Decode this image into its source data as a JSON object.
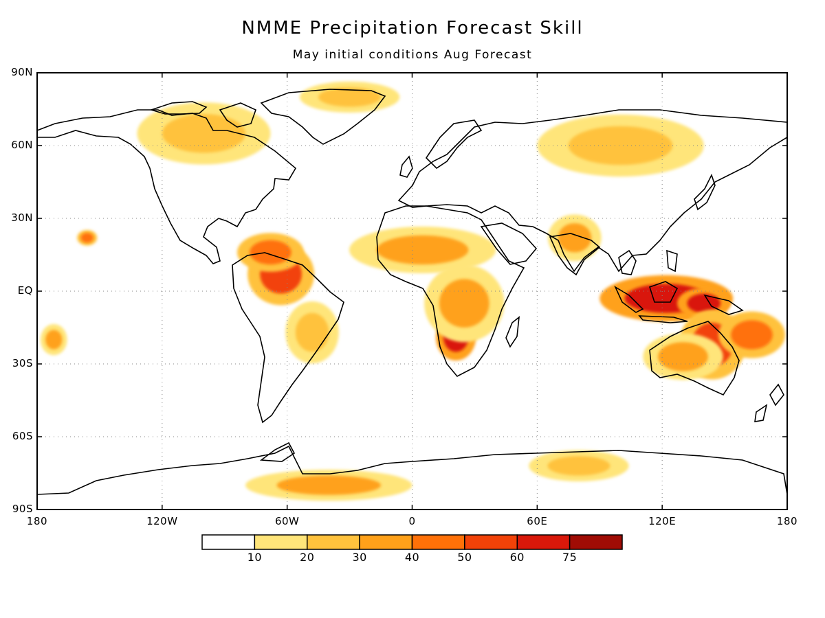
{
  "chart": {
    "title": "NMME Precipitation Forecast Skill",
    "subtitle": "May initial conditions  Aug Forecast"
  },
  "chart_data": {
    "type": "heatmap",
    "title": "NMME Precipitation Forecast Skill",
    "subtitle": "May initial conditions  Aug Forecast",
    "xlabel": "",
    "ylabel": "",
    "xlim": [
      -180,
      180
    ],
    "ylim": [
      -90,
      90
    ],
    "grid": true,
    "x_ticks": [
      {
        "value": -180,
        "label": "180"
      },
      {
        "value": -120,
        "label": "120W"
      },
      {
        "value": -60,
        "label": "60W"
      },
      {
        "value": 0,
        "label": "0"
      },
      {
        "value": 60,
        "label": "60E"
      },
      {
        "value": 120,
        "label": "120E"
      },
      {
        "value": 180,
        "label": "180"
      }
    ],
    "y_ticks": [
      {
        "value": 90,
        "label": "90N"
      },
      {
        "value": 60,
        "label": "60N"
      },
      {
        "value": 30,
        "label": "30N"
      },
      {
        "value": 0,
        "label": "EQ"
      },
      {
        "value": -30,
        "label": "30S"
      },
      {
        "value": -60,
        "label": "60S"
      },
      {
        "value": -90,
        "label": "90S"
      }
    ],
    "colorbar": {
      "levels": [
        10,
        20,
        30,
        40,
        50,
        60,
        75
      ],
      "labels": [
        "10",
        "20",
        "30",
        "40",
        "50",
        "60",
        "75"
      ],
      "colors": [
        "#ffffff",
        "#ffe57a",
        "#ffc23d",
        "#ffa11a",
        "#ff7108",
        "#f24208",
        "#d9180a",
        "#a00c05"
      ]
    },
    "regions": [
      {
        "name": "maritime-continent",
        "lon": 122,
        "lat": -3,
        "rx": 20,
        "ry": 6,
        "value": 70
      },
      {
        "name": "new-guinea",
        "lon": 140,
        "lat": -5,
        "rx": 8,
        "ry": 4,
        "value": 65
      },
      {
        "name": "southern-africa",
        "lon": 21,
        "lat": -19,
        "rx": 6,
        "ry": 6,
        "value": 72
      },
      {
        "name": "central-africa",
        "lon": 25,
        "lat": -5,
        "rx": 12,
        "ry": 10,
        "value": 35
      },
      {
        "name": "northeast-australia",
        "lon": 144,
        "lat": -22,
        "rx": 10,
        "ry": 9,
        "value": 55
      },
      {
        "name": "central-australia",
        "lon": 130,
        "lat": -27,
        "rx": 12,
        "ry": 6,
        "value": 35
      },
      {
        "name": "sw-pacific",
        "lon": 163,
        "lat": -18,
        "rx": 10,
        "ry": 6,
        "value": 45
      },
      {
        "name": "northern-south-america",
        "lon": -63,
        "lat": 7,
        "rx": 10,
        "ry": 8,
        "value": 55
      },
      {
        "name": "caribbean",
        "lon": -68,
        "lat": 16,
        "rx": 10,
        "ry": 5,
        "value": 40
      },
      {
        "name": "brazil",
        "lon": -48,
        "lat": -17,
        "rx": 8,
        "ry": 8,
        "value": 25
      },
      {
        "name": "sahel",
        "lon": 5,
        "lat": 17,
        "rx": 22,
        "ry": 6,
        "value": 30
      },
      {
        "name": "india",
        "lon": 78,
        "lat": 22,
        "rx": 8,
        "ry": 6,
        "value": 30
      },
      {
        "name": "siberia",
        "lon": 100,
        "lat": 60,
        "rx": 25,
        "ry": 8,
        "value": 25
      },
      {
        "name": "greenland-arctic",
        "lon": -30,
        "lat": 80,
        "rx": 15,
        "ry": 4,
        "value": 20
      },
      {
        "name": "canada",
        "lon": -100,
        "lat": 65,
        "rx": 20,
        "ry": 8,
        "value": 20
      },
      {
        "name": "antarctica-weddell",
        "lon": -40,
        "lat": -80,
        "rx": 25,
        "ry": 4,
        "value": 30
      },
      {
        "name": "antarctica-east",
        "lon": 80,
        "lat": -72,
        "rx": 15,
        "ry": 4,
        "value": 20
      },
      {
        "name": "south-pacific-west",
        "lon": -172,
        "lat": -20,
        "rx": 4,
        "ry": 4,
        "value": 35
      },
      {
        "name": "central-pacific-north",
        "lon": -156,
        "lat": 22,
        "rx": 3,
        "ry": 2,
        "value": 45
      }
    ]
  }
}
